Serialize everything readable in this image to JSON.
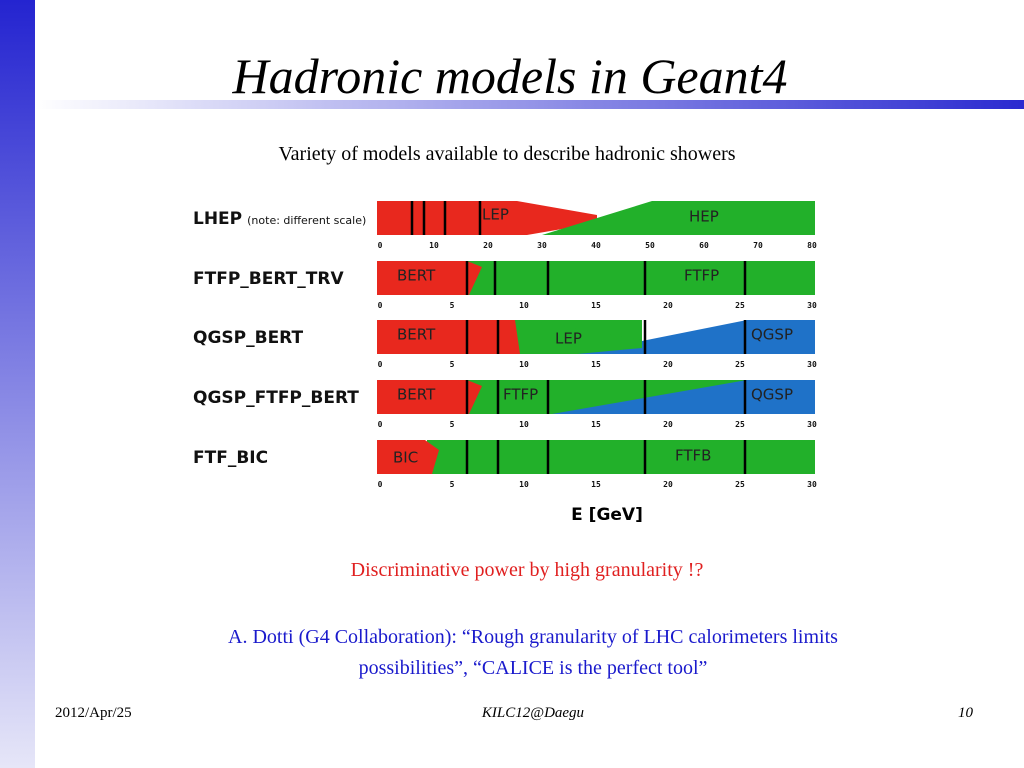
{
  "header": {
    "title": "Hadronic models in Geant4"
  },
  "subtitle": "Variety of models available to describe hadronic showers",
  "diagram": {
    "rows": [
      {
        "name": "LHEP",
        "note": "(note: different scale)",
        "segments": [
          "LEP",
          "HEP"
        ],
        "ticks": [
          0,
          10,
          20,
          30,
          40,
          50,
          60,
          70,
          80
        ]
      },
      {
        "name": "FTFP_BERT_TRV",
        "segments": [
          "BERT",
          "FTFP"
        ],
        "ticks": [
          0,
          5,
          10,
          15,
          20,
          25,
          30
        ]
      },
      {
        "name": "QGSP_BERT",
        "segments": [
          "BERT",
          "LEP",
          "QGSP"
        ],
        "ticks": [
          0,
          5,
          10,
          15,
          20,
          25,
          30
        ]
      },
      {
        "name": "QGSP_FTFP_BERT",
        "segments": [
          "BERT",
          "FTFP",
          "QGSP"
        ],
        "ticks": [
          0,
          5,
          10,
          15,
          20,
          25,
          30
        ]
      },
      {
        "name": "FTF_BIC",
        "segments": [
          "BIC",
          "FTFB"
        ],
        "ticks": [
          0,
          5,
          10,
          15,
          20,
          25,
          30
        ]
      }
    ],
    "axis_label": "E [GeV]"
  },
  "highlight": "Discriminative power by high granularity !?",
  "quote": [
    "A. Dotti (G4 Collaboration): “Rough granularity of LHC calorimeters limits",
    "possibilities”, “CALICE is the perfect tool”"
  ],
  "footer": {
    "date": "2012/Apr/25",
    "event": "KILC12@Daegu",
    "page": "10"
  }
}
